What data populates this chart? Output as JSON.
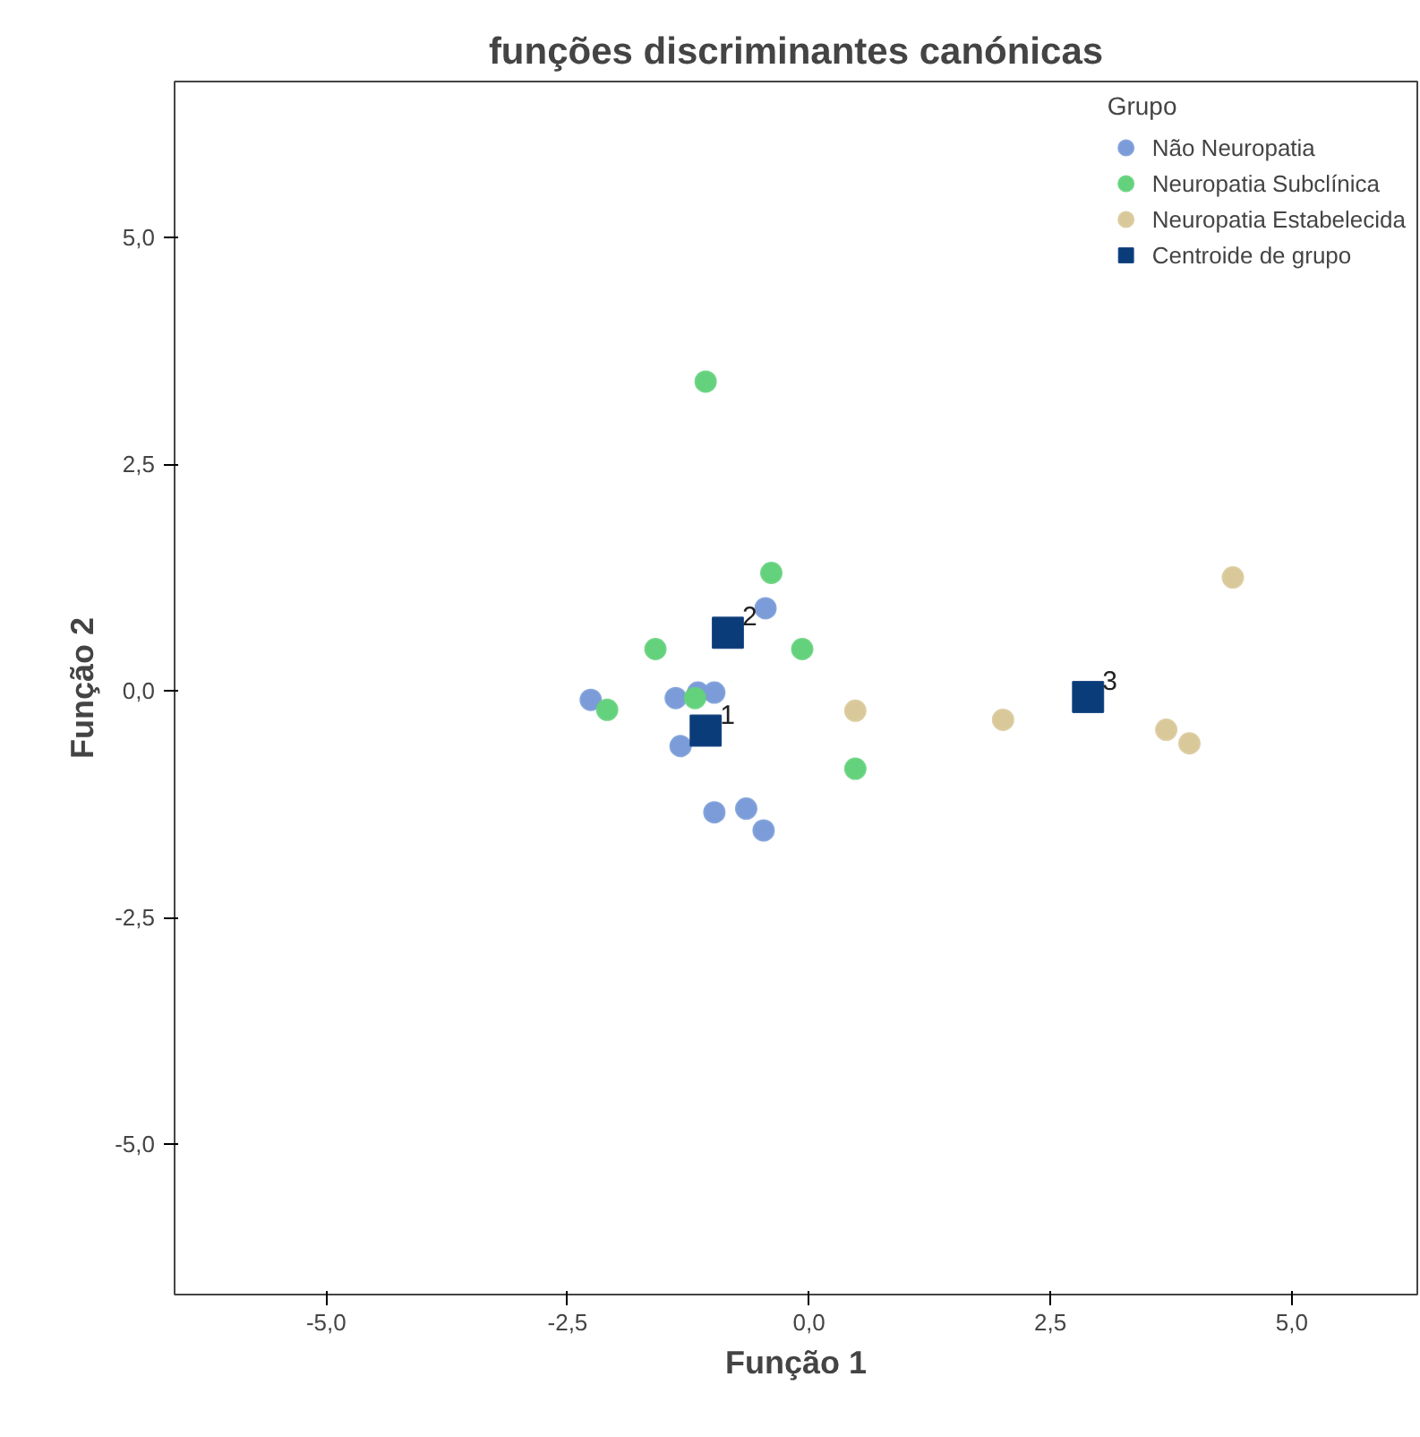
{
  "chart_data": {
    "type": "scatter",
    "title": "funções discriminantes canónicas",
    "xlabel": "Função 1",
    "ylabel": "Função 2",
    "legend_title": "Grupo",
    "legend": "top right",
    "grid": false,
    "xlim": [
      -6.57,
      6.3
    ],
    "ylim": [
      -6.66,
      6.72
    ],
    "xticks": [
      {
        "value": -5,
        "label": "-5,0"
      },
      {
        "value": -2.5,
        "label": "-2,5"
      },
      {
        "value": 0,
        "label": "0,0"
      },
      {
        "value": 2.5,
        "label": "2,5"
      },
      {
        "value": 5,
        "label": "5,0"
      }
    ],
    "yticks": [
      {
        "value": -5,
        "label": "-5,0"
      },
      {
        "value": -2.5,
        "label": "-2,5"
      },
      {
        "value": 0,
        "label": "0,0"
      },
      {
        "value": 2.5,
        "label": "2,5"
      },
      {
        "value": 5,
        "label": "5,0"
      }
    ],
    "series": [
      {
        "name": "Não Neuropatia",
        "color": "#7b9cd8",
        "marker": "circle",
        "x": [
          -2.26,
          -1.38,
          -1.15,
          -0.98,
          -1.33,
          -0.45,
          -0.98,
          -0.65,
          -0.47
        ],
        "values": [
          -0.1,
          -0.08,
          -0.02,
          -0.02,
          -0.61,
          0.91,
          -1.34,
          -1.3,
          -1.54
        ]
      },
      {
        "name": "Neuropatia Subclínica",
        "color": "#64d27c",
        "marker": "circle",
        "x": [
          -1.07,
          -0.39,
          -1.59,
          -0.07,
          -2.09,
          -1.18,
          0.48
        ],
        "values": [
          3.41,
          1.3,
          0.46,
          0.46,
          -0.21,
          -0.08,
          -0.86
        ]
      },
      {
        "name": "Neuropatia Estabelecida",
        "color": "#d9c99a",
        "marker": "circle",
        "x": [
          0.48,
          2.01,
          3.7,
          3.94,
          4.39
        ],
        "values": [
          -0.22,
          -0.32,
          -0.43,
          -0.58,
          1.25
        ]
      },
      {
        "name": "Centroide de grupo",
        "color": "#0b3c7a",
        "marker": "square",
        "x": [
          -1.07,
          -0.84,
          2.89
        ],
        "values": [
          -0.44,
          0.64,
          -0.07
        ]
      }
    ],
    "annotations": [
      {
        "text": "1",
        "x": -1.07,
        "y": -0.44
      },
      {
        "text": "2",
        "x": -0.84,
        "y": 0.64
      },
      {
        "text": "3",
        "x": 2.89,
        "y": -0.07
      }
    ]
  }
}
